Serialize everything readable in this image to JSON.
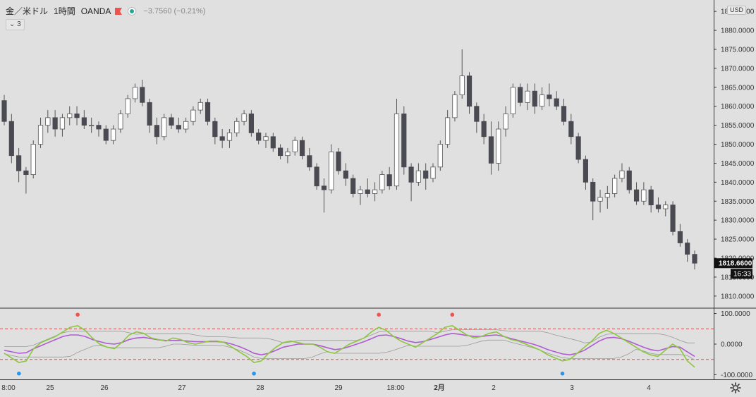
{
  "header": {
    "symbol": "金／米ドル",
    "timeframe": "1時間",
    "source": "OANDA",
    "change": "−3.7560 (−0.21%)",
    "collapse_label": "⌄ 3",
    "currency": "USD"
  },
  "colors": {
    "background": "#e0e0e0",
    "candle_up": "#ffffff",
    "candle_down": "#4a4a52",
    "wick": "#555555",
    "oscillator_fast": "#8dc63f",
    "oscillator_slow": "#b05ad4",
    "band": "#9a9a9a",
    "threshold": "#e05050",
    "signal_sell": "#ef5350",
    "signal_buy": "#2196f3",
    "flag": "#ef5350",
    "live_dot": "#26a69a"
  },
  "price_axis": {
    "ticks": [
      "1885.0000",
      "1880.0000",
      "1875.0000",
      "1870.0000",
      "1865.0000",
      "1860.0000",
      "1855.0000",
      "1850.0000",
      "1845.0000",
      "1840.0000",
      "1835.0000",
      "1830.0000",
      "1825.0000",
      "1820.0000",
      "1815.0000",
      "1810.0000"
    ],
    "last_price": "1818.6600",
    "countdown": "16:33"
  },
  "oscillator_axis": {
    "ticks": [
      "100.0000",
      "0.0000",
      "-100.0000"
    ]
  },
  "time_axis": {
    "labels": [
      "8:00",
      "25",
      "26",
      "27",
      "28",
      "29",
      "18:00",
      "2月",
      "2",
      "3",
      "4"
    ]
  },
  "chart_data": [
    {
      "type": "candlestick",
      "symbol": "金／米ドル",
      "timeframe": "1時間",
      "ylim": [
        1807,
        1888
      ],
      "bars": [
        [
          1861.5,
          1863,
          1855,
          1856
        ],
        [
          1856,
          1858,
          1845,
          1847
        ],
        [
          1847,
          1849,
          1840,
          1843
        ],
        [
          1843,
          1844,
          1837,
          1842
        ],
        [
          1842,
          1851,
          1841,
          1850
        ],
        [
          1850,
          1857,
          1849,
          1855
        ],
        [
          1855,
          1859,
          1853,
          1857
        ],
        [
          1857,
          1859,
          1852,
          1854
        ],
        [
          1854,
          1858,
          1852,
          1857
        ],
        [
          1857,
          1860,
          1855,
          1858
        ],
        [
          1858,
          1860,
          1855,
          1857
        ],
        [
          1857,
          1859,
          1854,
          1855
        ],
        [
          1855,
          1857,
          1853,
          1855
        ],
        [
          1855,
          1856,
          1852,
          1854
        ],
        [
          1854,
          1855,
          1850,
          1851
        ],
        [
          1851,
          1855,
          1850,
          1854
        ],
        [
          1854,
          1859,
          1853,
          1858
        ],
        [
          1858,
          1863,
          1857,
          1862
        ],
        [
          1862,
          1866,
          1861,
          1865
        ],
        [
          1865,
          1867,
          1860,
          1861
        ],
        [
          1861,
          1862,
          1853,
          1855
        ],
        [
          1855,
          1857,
          1850,
          1852
        ],
        [
          1852,
          1858,
          1851,
          1857
        ],
        [
          1857,
          1858,
          1854,
          1855
        ],
        [
          1855,
          1857,
          1853,
          1854
        ],
        [
          1854,
          1857,
          1853,
          1856
        ],
        [
          1856,
          1860,
          1855,
          1859
        ],
        [
          1859,
          1862,
          1858,
          1861
        ],
        [
          1861,
          1862,
          1855,
          1856
        ],
        [
          1856,
          1857,
          1850,
          1852
        ],
        [
          1852,
          1854,
          1849,
          1851
        ],
        [
          1851,
          1854,
          1849,
          1853
        ],
        [
          1853,
          1857,
          1852,
          1856
        ],
        [
          1856,
          1859,
          1855,
          1858
        ],
        [
          1858,
          1859,
          1852,
          1853
        ],
        [
          1853,
          1854,
          1850,
          1851
        ],
        [
          1851,
          1853,
          1849,
          1852
        ],
        [
          1852,
          1853,
          1848,
          1849
        ],
        [
          1849,
          1850,
          1846,
          1847
        ],
        [
          1847,
          1849,
          1845,
          1848
        ],
        [
          1848,
          1852,
          1847,
          1851
        ],
        [
          1851,
          1852,
          1846,
          1847
        ],
        [
          1847,
          1849,
          1843,
          1844
        ],
        [
          1844,
          1845,
          1838,
          1839
        ],
        [
          1839,
          1841,
          1832,
          1838
        ],
        [
          1838,
          1850,
          1837,
          1848
        ],
        [
          1848,
          1849,
          1842,
          1843
        ],
        [
          1843,
          1845,
          1839,
          1841
        ],
        [
          1841,
          1842,
          1836,
          1837
        ],
        [
          1837,
          1839,
          1834,
          1838
        ],
        [
          1838,
          1841,
          1836,
          1837
        ],
        [
          1837,
          1840,
          1835,
          1838
        ],
        [
          1838,
          1843,
          1837,
          1842
        ],
        [
          1842,
          1844,
          1838,
          1839
        ],
        [
          1839,
          1862,
          1838,
          1858
        ],
        [
          1858,
          1860,
          1842,
          1844
        ],
        [
          1844,
          1845,
          1835,
          1840
        ],
        [
          1840,
          1845,
          1839,
          1843
        ],
        [
          1843,
          1845,
          1838,
          1841
        ],
        [
          1841,
          1845,
          1840,
          1844
        ],
        [
          1844,
          1851,
          1843,
          1850
        ],
        [
          1850,
          1859,
          1849,
          1857
        ],
        [
          1857,
          1864,
          1856,
          1863
        ],
        [
          1863,
          1875,
          1862,
          1868
        ],
        [
          1868,
          1869,
          1858,
          1860
        ],
        [
          1860,
          1861,
          1853,
          1856
        ],
        [
          1856,
          1858,
          1850,
          1852
        ],
        [
          1852,
          1856,
          1842,
          1845
        ],
        [
          1845,
          1856,
          1843,
          1854
        ],
        [
          1854,
          1860,
          1852,
          1858
        ],
        [
          1858,
          1866,
          1857,
          1865
        ],
        [
          1865,
          1866,
          1860,
          1861
        ],
        [
          1861,
          1866,
          1859,
          1864
        ],
        [
          1864,
          1866,
          1858,
          1860
        ],
        [
          1860,
          1865,
          1859,
          1863
        ],
        [
          1863,
          1866,
          1860,
          1862
        ],
        [
          1862,
          1864,
          1859,
          1860
        ],
        [
          1860,
          1862,
          1855,
          1856
        ],
        [
          1856,
          1858,
          1850,
          1852
        ],
        [
          1852,
          1853,
          1845,
          1846
        ],
        [
          1846,
          1847,
          1838,
          1840
        ],
        [
          1840,
          1841,
          1830,
          1835
        ],
        [
          1835,
          1838,
          1832,
          1836
        ],
        [
          1836,
          1839,
          1833,
          1837
        ],
        [
          1837,
          1842,
          1836,
          1841
        ],
        [
          1841,
          1845,
          1840,
          1843
        ],
        [
          1843,
          1844,
          1837,
          1838
        ],
        [
          1838,
          1840,
          1834,
          1835
        ],
        [
          1835,
          1840,
          1834,
          1838
        ],
        [
          1838,
          1839,
          1832,
          1834
        ],
        [
          1834,
          1836,
          1832,
          1833
        ],
        [
          1833,
          1835,
          1831,
          1834
        ],
        [
          1834,
          1835,
          1826,
          1827
        ],
        [
          1827,
          1829,
          1823,
          1824
        ],
        [
          1824,
          1825,
          1819,
          1821
        ],
        [
          1821,
          1822,
          1817,
          1818.66
        ]
      ]
    },
    {
      "type": "line",
      "ylim": [
        -115,
        115
      ],
      "threshold_levels": [
        50,
        -50
      ],
      "series": [
        {
          "values": [
            -30,
            -45,
            -60,
            -55,
            -15,
            5,
            15,
            25,
            40,
            55,
            60,
            45,
            20,
            0,
            -10,
            -15,
            5,
            30,
            40,
            35,
            20,
            15,
            10,
            20,
            15,
            5,
            0,
            5,
            10,
            10,
            5,
            -10,
            -25,
            -40,
            -60,
            -55,
            -30,
            -10,
            5,
            10,
            5,
            0,
            0,
            -10,
            -25,
            -30,
            -15,
            0,
            10,
            20,
            40,
            55,
            45,
            25,
            10,
            0,
            -10,
            5,
            20,
            35,
            55,
            60,
            45,
            30,
            20,
            25,
            35,
            40,
            25,
            15,
            10,
            0,
            -10,
            -20,
            -35,
            -45,
            -55,
            -50,
            -30,
            -10,
            10,
            35,
            45,
            35,
            20,
            5,
            -10,
            -25,
            -35,
            -40,
            -20,
            0,
            -15,
            -55,
            -75
          ]
        },
        {
          "values": [
            -20,
            -25,
            -30,
            -28,
            -15,
            -5,
            5,
            15,
            25,
            30,
            30,
            25,
            15,
            8,
            2,
            0,
            5,
            15,
            20,
            22,
            18,
            14,
            12,
            12,
            12,
            10,
            8,
            8,
            8,
            8,
            6,
            0,
            -8,
            -18,
            -30,
            -35,
            -30,
            -20,
            -10,
            -5,
            0,
            0,
            0,
            -5,
            -12,
            -18,
            -15,
            -8,
            0,
            8,
            18,
            28,
            30,
            25,
            18,
            10,
            5,
            8,
            15,
            22,
            30,
            35,
            32,
            28,
            25,
            25,
            28,
            30,
            25,
            18,
            12,
            6,
            0,
            -8,
            -18,
            -25,
            -32,
            -35,
            -30,
            -20,
            -5,
            10,
            20,
            22,
            18,
            10,
            0,
            -10,
            -18,
            -22,
            -15,
            -8,
            -10,
            -25,
            -40
          ]
        }
      ]
    }
  ]
}
